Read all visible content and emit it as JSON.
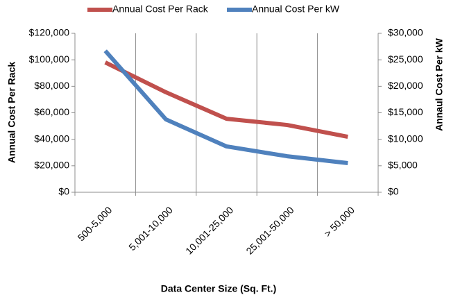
{
  "chart_data": {
    "type": "line",
    "x_label": "Data Center Size (Sq. Ft.)",
    "y_label": "Annual Cost Per Rack",
    "y2_label": "Annaul Cost Per kW",
    "categories": [
      "500-5,000",
      "5,001-10,000",
      "10,001-25,000",
      "25,001-50,000",
      "> 50,000"
    ],
    "series": [
      {
        "name": "Annual Cost Per Rack",
        "color": "#c0504d",
        "values": [
          98000,
          75500,
          55500,
          50800,
          41900
        ]
      },
      {
        "name": "Annual Cost Per kW",
        "color": "#4f81bd",
        "axis": "y2",
        "values": [
          26700,
          13750,
          8650,
          6800,
          5500
        ]
      }
    ],
    "ylim": [
      0,
      120000
    ],
    "yticks": [
      {
        "value": 0,
        "label": "$0"
      },
      {
        "value": 20000,
        "label": "$20,000"
      },
      {
        "value": 40000,
        "label": "$40,000"
      },
      {
        "value": 60000,
        "label": "$60,000"
      },
      {
        "value": 80000,
        "label": "$80,000"
      },
      {
        "value": 100000,
        "label": "$100,000"
      },
      {
        "value": 120000,
        "label": "$120,000"
      }
    ],
    "y2lim": [
      0,
      30000
    ],
    "y2ticks": [
      {
        "value": 0,
        "label": "$0"
      },
      {
        "value": 5000,
        "label": "$5,000"
      },
      {
        "value": 10000,
        "label": "$10,000"
      },
      {
        "value": 15000,
        "label": "$15,000"
      },
      {
        "value": 20000,
        "label": "$20,000"
      },
      {
        "value": 25000,
        "label": "$25,000"
      },
      {
        "value": 30000,
        "label": "$30,000"
      }
    ],
    "legend": "top"
  }
}
